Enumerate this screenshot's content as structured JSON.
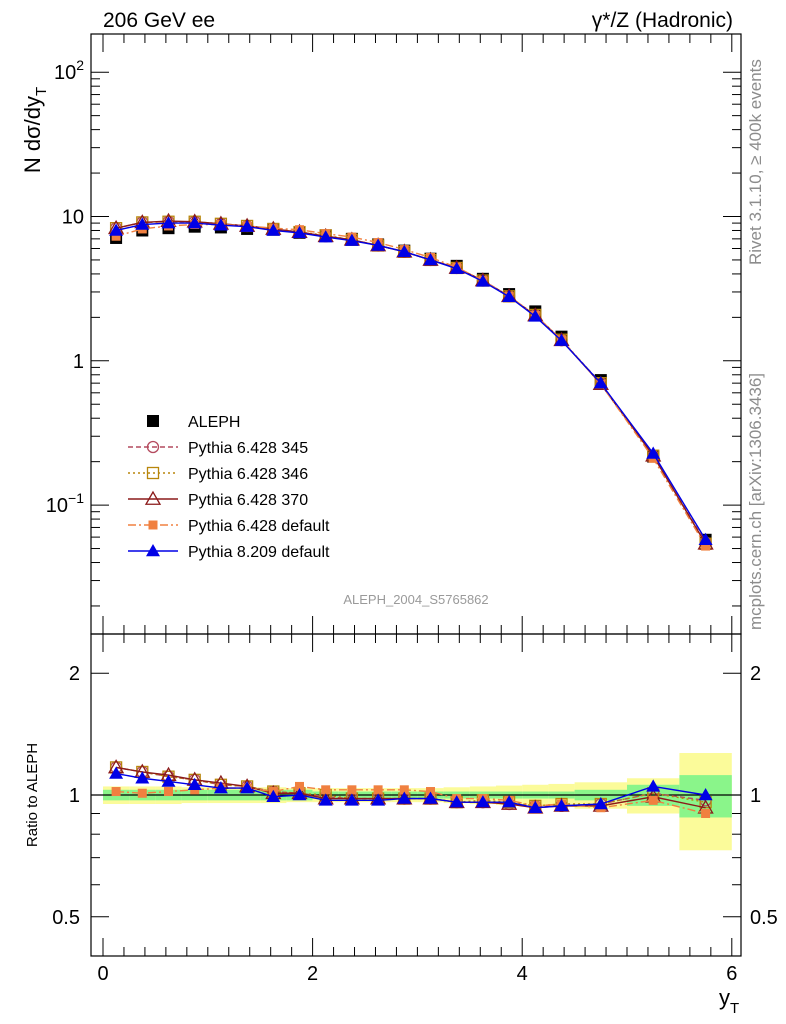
{
  "header": {
    "left": "206 GeV ee",
    "right_main": "γ*/Z (Hadronic)"
  },
  "side": {
    "rivet": "Rivet 3.1.10, ≥ 400k events",
    "mcplots": "mcplots.cern.ch [arXiv:1306.3436]"
  },
  "analysis_label": "ALEPH_2004_S5765862",
  "chart_data": [
    {
      "type": "line",
      "panel": "main",
      "ylabel": "N dσ/dy_T",
      "ylog": true,
      "ylim": [
        0.016,
        190
      ],
      "yticks": [
        {
          "v": 0.1,
          "base": "10",
          "exp": "−1"
        },
        {
          "v": 1,
          "base": "1",
          "exp": ""
        },
        {
          "v": 10,
          "base": "10",
          "exp": ""
        },
        {
          "v": 100,
          "base": "10",
          "exp": "2"
        }
      ],
      "x": [
        0.125,
        0.375,
        0.625,
        0.875,
        1.125,
        1.375,
        1.625,
        1.875,
        2.125,
        2.375,
        2.625,
        2.875,
        3.125,
        3.375,
        3.625,
        3.875,
        4.125,
        4.375,
        4.75,
        5.25,
        5.75
      ],
      "series": [
        {
          "name": "ALEPH",
          "color": "#000000",
          "values": [
            7.1,
            8.0,
            8.3,
            8.5,
            8.4,
            8.2,
            8.1,
            7.7,
            7.4,
            7.0,
            6.4,
            5.8,
            5.1,
            4.55,
            3.7,
            2.9,
            2.2,
            1.47,
            0.735,
            0.217,
            0.0575
          ]
        },
        {
          "name": "Pythia 6.428 345",
          "color": "#b44a5e",
          "values": [
            8.3,
            9.1,
            9.2,
            9.2,
            8.9,
            8.6,
            8.2,
            7.8,
            7.3,
            6.9,
            6.3,
            5.7,
            5.0,
            4.4,
            3.6,
            2.8,
            2.07,
            1.39,
            0.7,
            0.22,
            0.055
          ]
        },
        {
          "name": "Pythia 6.428 346",
          "color": "#b8860b",
          "values": [
            8.3,
            9.1,
            9.2,
            9.2,
            8.9,
            8.6,
            8.2,
            7.8,
            7.4,
            6.9,
            6.3,
            5.7,
            5.0,
            4.4,
            3.6,
            2.8,
            2.08,
            1.4,
            0.7,
            0.22,
            0.054
          ]
        },
        {
          "name": "Pythia 6.428 370",
          "color": "#8b1a1a",
          "values": [
            8.3,
            9.1,
            9.3,
            9.2,
            8.9,
            8.6,
            8.2,
            7.8,
            7.3,
            6.9,
            6.3,
            5.7,
            5.0,
            4.4,
            3.6,
            2.8,
            2.06,
            1.39,
            0.69,
            0.22,
            0.054
          ]
        },
        {
          "name": "Pythia 6.428 default",
          "color": "#f08040",
          "values": [
            7.3,
            8.2,
            8.6,
            8.8,
            8.8,
            8.6,
            8.3,
            8.1,
            7.6,
            7.2,
            6.6,
            5.9,
            5.2,
            4.45,
            3.6,
            2.8,
            2.07,
            1.4,
            0.69,
            0.211,
            0.052
          ]
        },
        {
          "name": "Pythia 8.209 default",
          "color": "#0000e6",
          "values": [
            8.0,
            8.8,
            9.0,
            9.0,
            8.7,
            8.5,
            8.0,
            7.7,
            7.2,
            6.8,
            6.3,
            5.7,
            5.0,
            4.35,
            3.55,
            2.78,
            2.03,
            1.38,
            0.7,
            0.228,
            0.0575
          ]
        }
      ]
    },
    {
      "type": "line",
      "panel": "ratio",
      "ylabel": "Ratio to ALEPH",
      "xlabel": "y_T",
      "ylim": [
        0.35,
        2.25
      ],
      "yticks": [
        {
          "v": 0.5,
          "label": "0.5"
        },
        {
          "v": 1,
          "label": "1"
        },
        {
          "v": 2,
          "label": "2"
        }
      ],
      "xlim": [
        -0.15,
        6.15
      ],
      "xticks": [
        {
          "v": 0,
          "label": "0"
        },
        {
          "v": 2,
          "label": "2"
        },
        {
          "v": 4,
          "label": "4"
        },
        {
          "v": 6,
          "label": "6"
        }
      ],
      "band_edges": [
        0,
        0.25,
        0.5,
        0.75,
        1.0,
        1.25,
        1.5,
        1.75,
        2.0,
        2.25,
        2.5,
        2.75,
        3.0,
        3.25,
        3.5,
        3.75,
        4.0,
        4.25,
        4.5,
        5.0,
        5.5,
        6.0
      ],
      "band_stat": [
        0.03,
        0.03,
        0.03,
        0.03,
        0.03,
        0.03,
        0.03,
        0.03,
        0.02,
        0.02,
        0.02,
        0.02,
        0.02,
        0.02,
        0.02,
        0.02,
        0.02,
        0.02,
        0.03,
        0.06,
        0.12
      ],
      "band_total": [
        0.05,
        0.05,
        0.05,
        0.045,
        0.045,
        0.045,
        0.045,
        0.04,
        0.04,
        0.04,
        0.04,
        0.04,
        0.04,
        0.045,
        0.05,
        0.055,
        0.06,
        0.065,
        0.075,
        0.1,
        0.27
      ],
      "band_colors": {
        "stat": "#8af58a",
        "total": "#fbfb9a"
      },
      "series": [
        {
          "name": "Pythia 6.428 345",
          "values": [
            1.17,
            1.14,
            1.11,
            1.09,
            1.06,
            1.05,
            1.02,
            1.01,
            0.99,
            0.98,
            0.98,
            0.98,
            0.98,
            0.96,
            0.96,
            0.95,
            0.94,
            0.94,
            0.95,
            1.01,
            0.97
          ]
        },
        {
          "name": "Pythia 6.428 346",
          "values": [
            1.17,
            1.14,
            1.11,
            1.09,
            1.06,
            1.05,
            1.02,
            1.01,
            1.0,
            0.98,
            0.98,
            0.98,
            0.98,
            0.96,
            0.97,
            0.96,
            0.94,
            0.95,
            0.95,
            1.01,
            0.96
          ]
        },
        {
          "name": "Pythia 6.428 370",
          "values": [
            1.17,
            1.14,
            1.12,
            1.09,
            1.07,
            1.05,
            1.01,
            1.01,
            0.98,
            0.98,
            0.98,
            0.98,
            0.98,
            0.96,
            0.96,
            0.95,
            0.93,
            0.94,
            0.94,
            0.99,
            0.93
          ]
        },
        {
          "name": "Pythia 6.428 default",
          "values": [
            1.02,
            1.01,
            1.02,
            1.03,
            1.04,
            1.04,
            1.02,
            1.05,
            1.03,
            1.03,
            1.03,
            1.03,
            1.02,
            0.98,
            0.98,
            0.97,
            0.94,
            0.95,
            0.93,
            0.97,
            0.9
          ]
        },
        {
          "name": "Pythia 8.209 default",
          "values": [
            1.13,
            1.1,
            1.08,
            1.06,
            1.04,
            1.04,
            0.99,
            1.0,
            0.97,
            0.97,
            0.97,
            0.98,
            0.98,
            0.96,
            0.96,
            0.96,
            0.93,
            0.94,
            0.95,
            1.05,
            1.0
          ]
        }
      ]
    }
  ]
}
